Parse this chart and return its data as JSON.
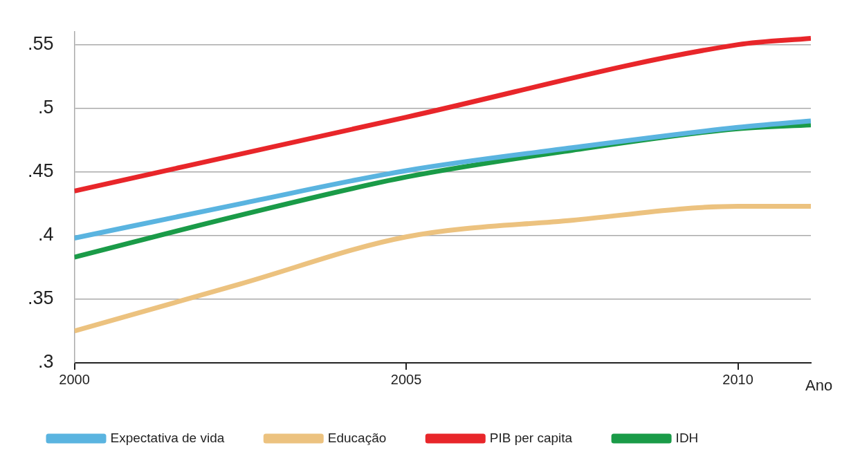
{
  "chart_data": {
    "type": "line",
    "xlabel": "Ano",
    "x": [
      2000,
      2002.5,
      2005,
      2007.5,
      2010,
      2011.1
    ],
    "series": [
      {
        "name": "Expectativa de vida",
        "color": "#5ab4e0",
        "values": [
          0.398,
          0.425,
          0.451,
          0.469,
          0.485,
          0.49
        ]
      },
      {
        "name": "Educação",
        "color": "#ecc27f",
        "values": [
          0.325,
          0.362,
          0.399,
          0.412,
          0.423,
          0.423
        ]
      },
      {
        "name": "PIB per capita",
        "color": "#e8262a",
        "x": [
          2000,
          2005,
          2010,
          2011.1
        ],
        "values": [
          0.435,
          0.493,
          0.55,
          0.555
        ]
      },
      {
        "name": "IDH",
        "color": "#1a9b48",
        "values": [
          0.383,
          0.416,
          0.446,
          0.467,
          0.484,
          0.487
        ]
      }
    ],
    "xlim": [
      2000,
      2011.1
    ],
    "xticks": [
      2000,
      2005,
      2010
    ],
    "ylim": [
      0.3,
      0.56
    ],
    "yticks": [
      {
        "value": 0.3,
        "label": ".3"
      },
      {
        "value": 0.35,
        "label": ".35"
      },
      {
        "value": 0.4,
        "label": ".4"
      },
      {
        "value": 0.45,
        "label": ".45"
      },
      {
        "value": 0.5,
        "label": ".5"
      },
      {
        "value": 0.55,
        "label": ".55"
      }
    ],
    "grid": "y",
    "legend": "bottom",
    "marker": "none",
    "line_style": "solid"
  }
}
